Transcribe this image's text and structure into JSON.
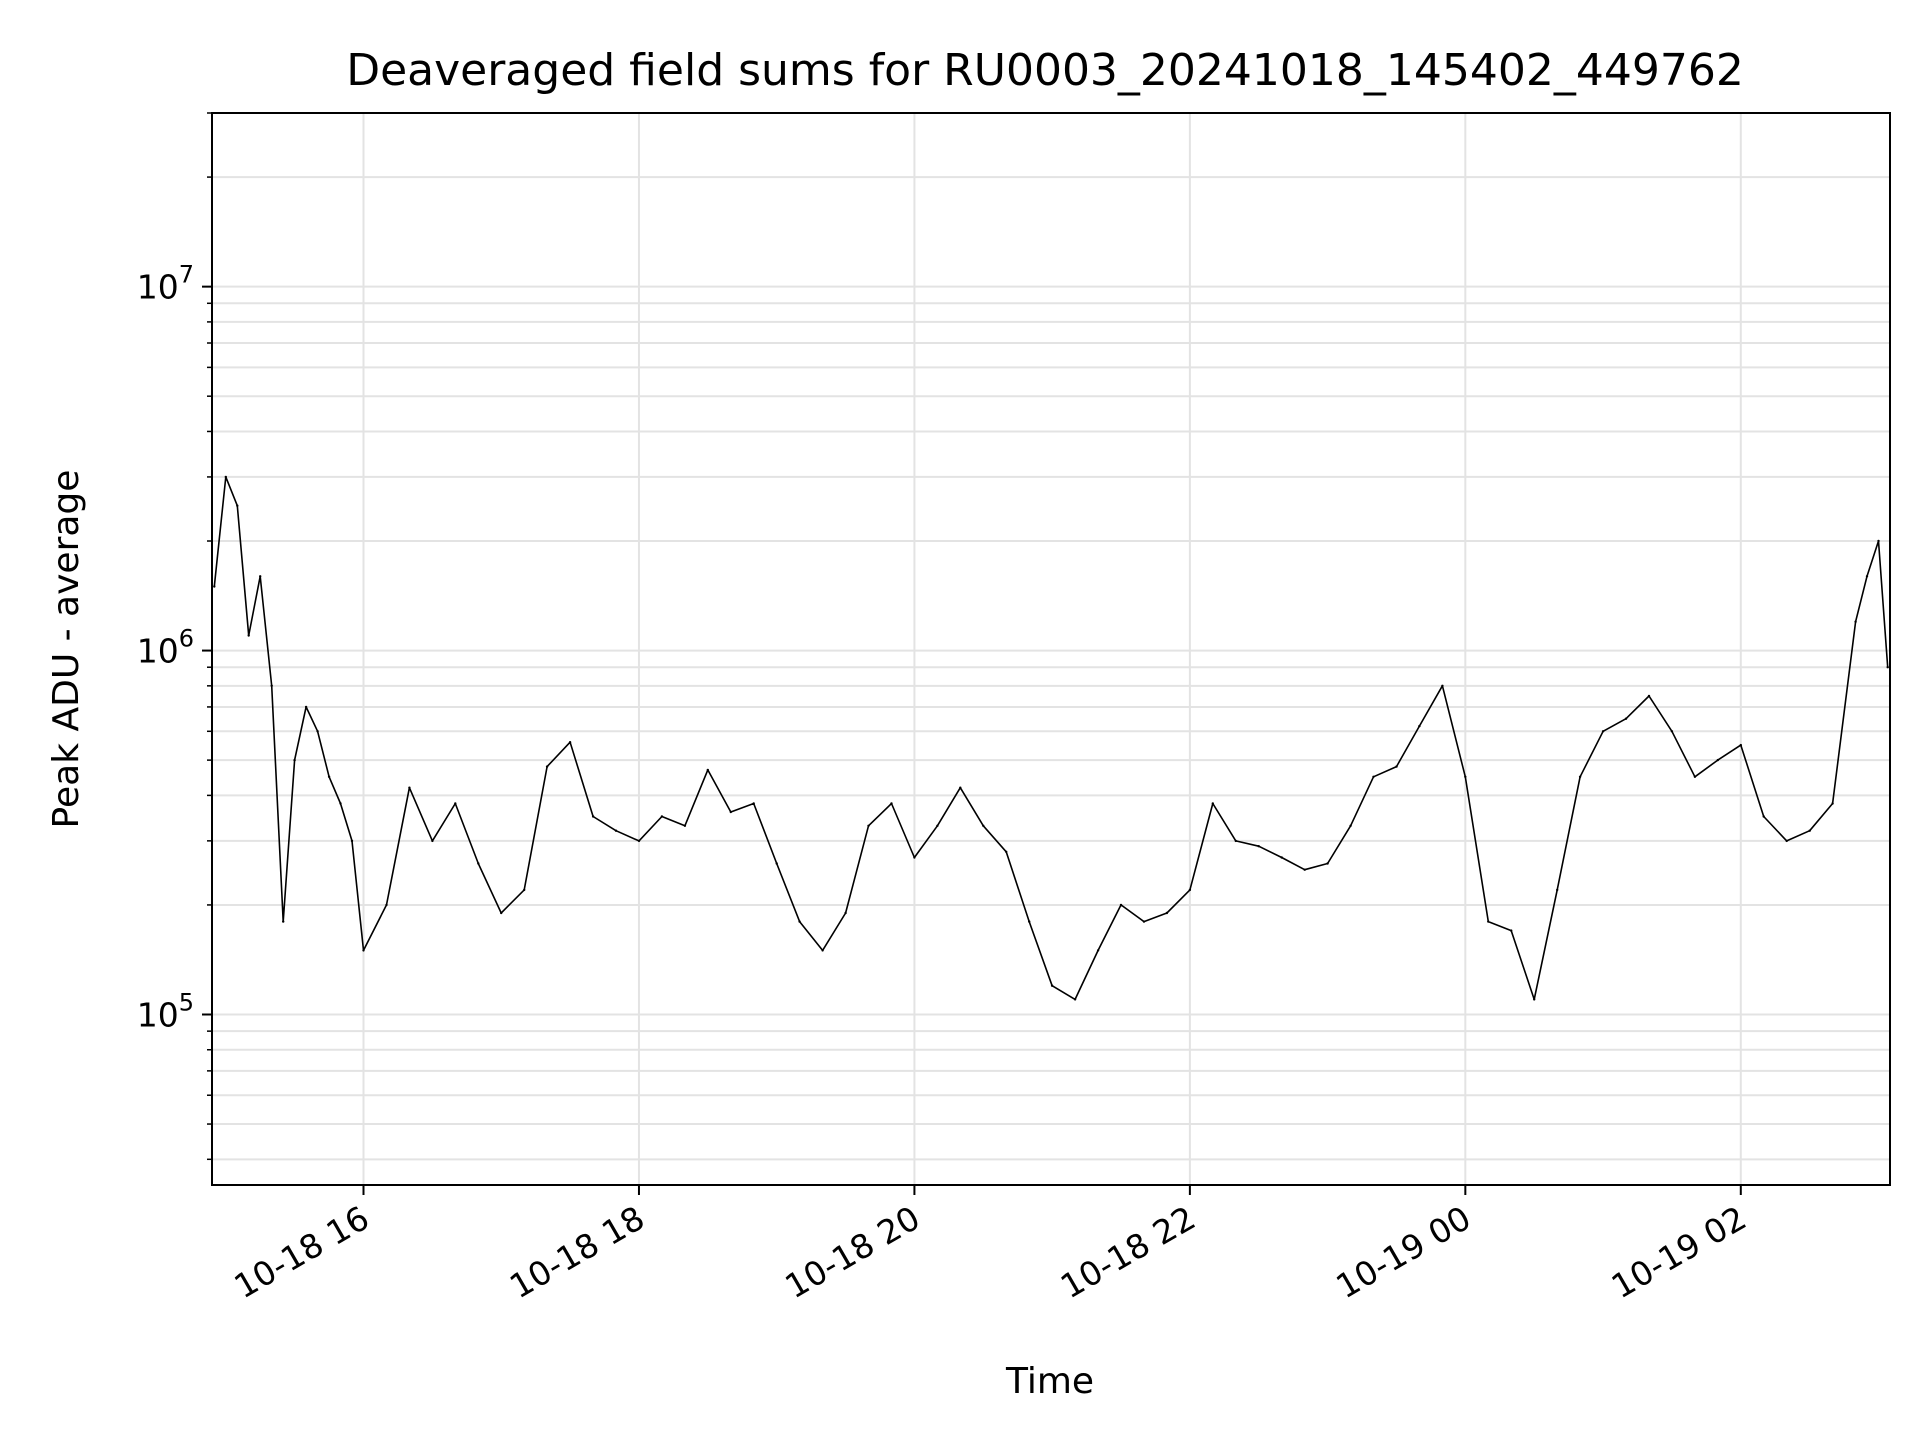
{
  "chart_data": {
    "type": "line",
    "title": "Deaveraged field sums for RU0003_20241018_145402_449762",
    "xlabel": "Time",
    "ylabel": "Peak ADU - average",
    "yscale": "log",
    "xlim": [
      "2024-10-18 14:54",
      "2024-10-19 03:05"
    ],
    "ylim": [
      34000,
      30000000
    ],
    "grid": true,
    "x_ticks": [
      {
        "value": "2024-10-18 16:00",
        "label": "10-18 16"
      },
      {
        "value": "2024-10-18 18:00",
        "label": "10-18 18"
      },
      {
        "value": "2024-10-18 20:00",
        "label": "10-18 20"
      },
      {
        "value": "2024-10-18 22:00",
        "label": "10-18 22"
      },
      {
        "value": "2024-10-19 00:00",
        "label": "10-19 00"
      },
      {
        "value": "2024-10-19 02:00",
        "label": "10-19 02"
      }
    ],
    "y_ticks": [
      {
        "value": 100000,
        "base": "10",
        "exp": "5"
      },
      {
        "value": 1000000,
        "base": "10",
        "exp": "6"
      },
      {
        "value": 10000000,
        "base": "10",
        "exp": "7"
      }
    ],
    "series": [
      {
        "color": "#000000",
        "x": [
          "2024-10-18 14:55",
          "2024-10-18 15:00",
          "2024-10-18 15:05",
          "2024-10-18 15:10",
          "2024-10-18 15:15",
          "2024-10-18 15:20",
          "2024-10-18 15:25",
          "2024-10-18 15:30",
          "2024-10-18 15:35",
          "2024-10-18 15:40",
          "2024-10-18 15:45",
          "2024-10-18 15:50",
          "2024-10-18 15:55",
          "2024-10-18 16:00",
          "2024-10-18 16:10",
          "2024-10-18 16:20",
          "2024-10-18 16:30",
          "2024-10-18 16:40",
          "2024-10-18 16:50",
          "2024-10-18 17:00",
          "2024-10-18 17:10",
          "2024-10-18 17:20",
          "2024-10-18 17:30",
          "2024-10-18 17:40",
          "2024-10-18 17:50",
          "2024-10-18 18:00",
          "2024-10-18 18:10",
          "2024-10-18 18:20",
          "2024-10-18 18:30",
          "2024-10-18 18:40",
          "2024-10-18 18:50",
          "2024-10-18 19:00",
          "2024-10-18 19:10",
          "2024-10-18 19:20",
          "2024-10-18 19:30",
          "2024-10-18 19:40",
          "2024-10-18 19:50",
          "2024-10-18 20:00",
          "2024-10-18 20:10",
          "2024-10-18 20:20",
          "2024-10-18 20:30",
          "2024-10-18 20:40",
          "2024-10-18 20:50",
          "2024-10-18 21:00",
          "2024-10-18 21:10",
          "2024-10-18 21:20",
          "2024-10-18 21:30",
          "2024-10-18 21:40",
          "2024-10-18 21:50",
          "2024-10-18 22:00",
          "2024-10-18 22:10",
          "2024-10-18 22:20",
          "2024-10-18 22:30",
          "2024-10-18 22:40",
          "2024-10-18 22:50",
          "2024-10-18 23:00",
          "2024-10-18 23:10",
          "2024-10-18 23:20",
          "2024-10-18 23:30",
          "2024-10-18 23:40",
          "2024-10-18 23:50",
          "2024-10-19 00:00",
          "2024-10-19 00:10",
          "2024-10-19 00:20",
          "2024-10-19 00:30",
          "2024-10-19 00:40",
          "2024-10-19 00:50",
          "2024-10-19 01:00",
          "2024-10-19 01:10",
          "2024-10-19 01:20",
          "2024-10-19 01:30",
          "2024-10-19 01:40",
          "2024-10-19 01:50",
          "2024-10-19 02:00",
          "2024-10-19 02:10",
          "2024-10-19 02:20",
          "2024-10-19 02:30",
          "2024-10-19 02:40",
          "2024-10-19 02:50",
          "2024-10-19 02:55",
          "2024-10-19 03:00",
          "2024-10-19 03:04"
        ],
        "y": [
          1500000,
          3000000,
          2500000,
          1100000,
          1600000,
          800000,
          180000,
          500000,
          700000,
          600000,
          450000,
          380000,
          300000,
          150000,
          200000,
          420000,
          300000,
          380000,
          260000,
          190000,
          220000,
          480000,
          560000,
          350000,
          320000,
          300000,
          350000,
          330000,
          470000,
          360000,
          380000,
          260000,
          180000,
          150000,
          190000,
          330000,
          380000,
          270000,
          330000,
          420000,
          330000,
          280000,
          180000,
          120000,
          110000,
          150000,
          200000,
          180000,
          190000,
          220000,
          380000,
          300000,
          290000,
          270000,
          250000,
          260000,
          330000,
          450000,
          480000,
          620000,
          800000,
          450000,
          180000,
          170000,
          110000,
          220000,
          450000,
          600000,
          650000,
          750000,
          600000,
          450000,
          500000,
          550000,
          350000,
          300000,
          320000,
          380000,
          1200000,
          1600000,
          2000000,
          900000
        ]
      }
    ]
  }
}
